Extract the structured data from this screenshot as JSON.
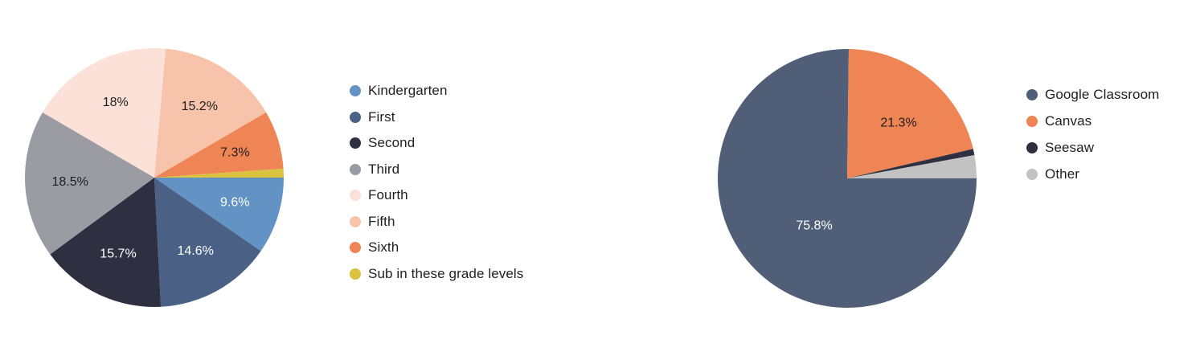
{
  "chart_data": [
    {
      "type": "pie",
      "categories": [
        "Kindergarten",
        "First",
        "Second",
        "Third",
        "Fourth",
        "Fifth",
        "Sixth",
        "Sub in these grade levels"
      ],
      "values": [
        9.6,
        14.6,
        15.7,
        18.5,
        18.0,
        15.2,
        7.3,
        1.1
      ],
      "data_labels": [
        "9.6%",
        "14.6%",
        "15.7%",
        "18.5%",
        "18%",
        "15.2%",
        "7.3%",
        ""
      ],
      "colors": [
        "#6393c4",
        "#4a6185",
        "#2e3042",
        "#9a9ba3",
        "#fbe1d7",
        "#f8c3ab",
        "#ef8454",
        "#d9c33f"
      ],
      "label_colors": [
        "#ffffff",
        "#ffffff",
        "#ffffff",
        "#1f1f1f",
        "#1f1f1f",
        "#1f1f1f",
        "#1f1f1f",
        "#1f1f1f"
      ],
      "legend_placement": "right"
    },
    {
      "type": "pie",
      "categories": [
        "Google Classroom",
        "Canvas",
        "Seesaw",
        "Other"
      ],
      "values": [
        75.8,
        21.3,
        0.8,
        2.9
      ],
      "data_labels": [
        "75.8%",
        "21.3%",
        "",
        ""
      ],
      "colors": [
        "#505f77",
        "#ef8454",
        "#2e3042",
        "#c2c2c2"
      ],
      "label_colors": [
        "#ffffff",
        "#1f1f1f",
        "#ffffff",
        "#1f1f1f"
      ],
      "legend_placement": "right"
    }
  ]
}
